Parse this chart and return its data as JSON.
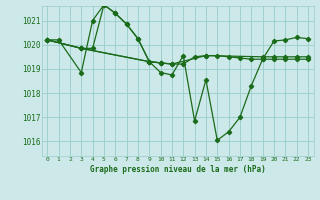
{
  "bg_color": "#cce8e8",
  "grid_color": "#99cccc",
  "line_color": "#1a6b1a",
  "xlabel": "Graphe pression niveau de la mer (hPa)",
  "xlim": [
    -0.5,
    23.5
  ],
  "ylim": [
    1015.4,
    1021.6
  ],
  "yticks": [
    1016,
    1017,
    1018,
    1019,
    1020,
    1021
  ],
  "xticks": [
    0,
    1,
    2,
    3,
    4,
    5,
    6,
    7,
    8,
    9,
    10,
    11,
    12,
    13,
    14,
    15,
    16,
    17,
    18,
    19,
    20,
    21,
    22,
    23
  ],
  "series": [
    {
      "x": [
        0,
        1,
        3,
        4,
        5,
        6,
        7,
        8,
        9,
        10
      ],
      "y": [
        1020.2,
        1020.2,
        1018.85,
        1021.0,
        1021.65,
        1021.3,
        1020.85,
        1020.25,
        1019.3,
        1019.25
      ]
    },
    {
      "x": [
        0,
        3,
        4,
        5,
        6,
        7,
        8,
        9,
        10,
        11,
        12,
        13,
        14,
        15,
        16,
        17,
        18,
        19,
        20,
        21,
        22,
        23
      ],
      "y": [
        1020.2,
        1019.85,
        1019.85,
        1021.65,
        1021.3,
        1020.85,
        1020.25,
        1019.3,
        1018.85,
        1018.75,
        1019.55,
        1016.85,
        1018.55,
        1016.05,
        1016.4,
        1017.0,
        1018.3,
        1019.4,
        1020.15,
        1020.2,
        1020.3,
        1020.25
      ]
    },
    {
      "x": [
        0,
        3,
        9,
        10,
        11,
        12,
        13,
        14,
        15,
        16,
        17,
        18,
        19,
        20,
        21,
        22,
        23
      ],
      "y": [
        1020.2,
        1019.85,
        1019.3,
        1019.25,
        1019.2,
        1019.2,
        1019.5,
        1019.55,
        1019.55,
        1019.5,
        1019.45,
        1019.4,
        1019.4,
        1019.4,
        1019.4,
        1019.4,
        1019.4
      ]
    },
    {
      "x": [
        0,
        3,
        9,
        10,
        11,
        14,
        19,
        20,
        21,
        22,
        23
      ],
      "y": [
        1020.2,
        1019.85,
        1019.3,
        1019.25,
        1019.2,
        1019.55,
        1019.5,
        1019.5,
        1019.5,
        1019.5,
        1019.5
      ]
    }
  ]
}
